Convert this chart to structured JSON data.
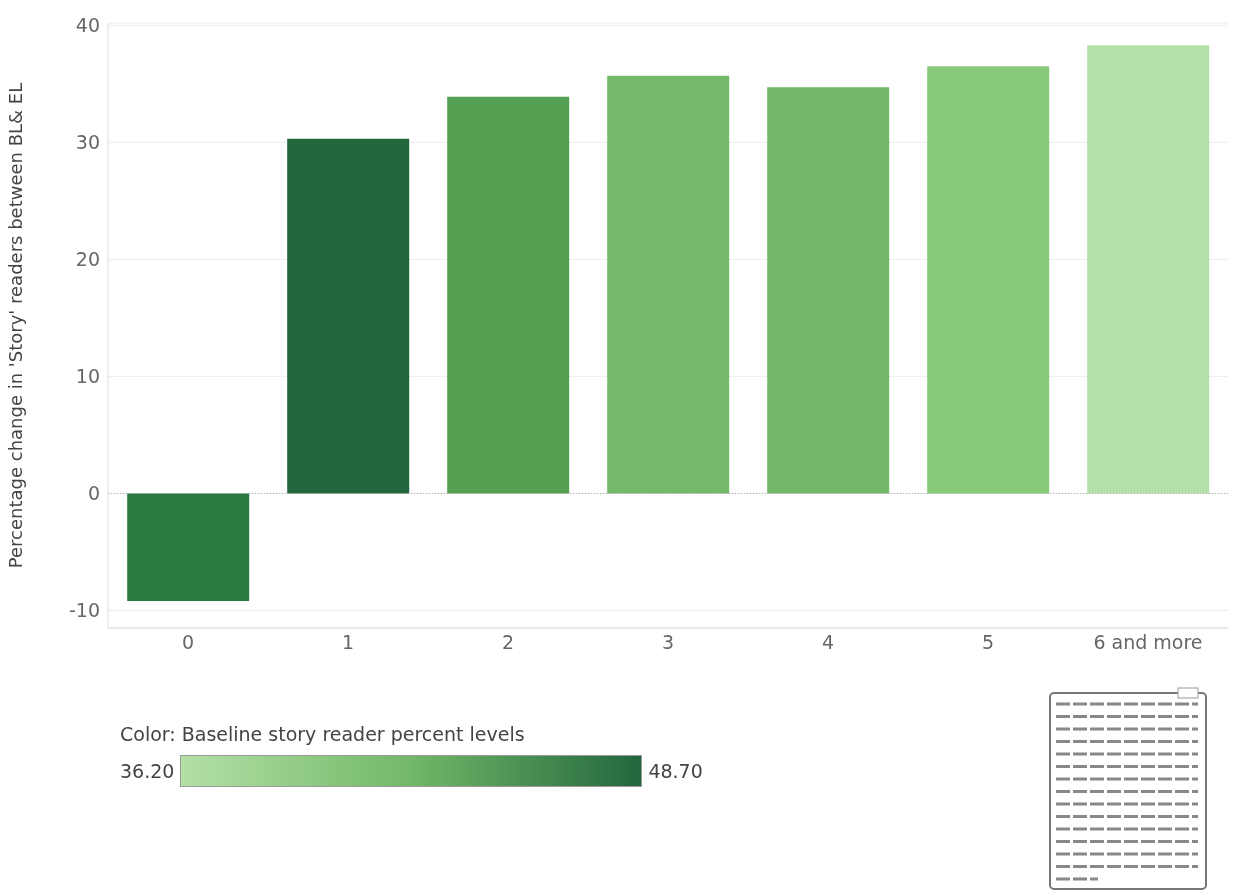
{
  "chart_data": {
    "type": "bar",
    "ylabel": "Percentage change in 'Story' readers between BL& EL",
    "categories": [
      "0",
      "1",
      "2",
      "3",
      "4",
      "5",
      "6 and more"
    ],
    "values": [
      -9.2,
      30.3,
      33.9,
      35.7,
      34.7,
      36.5,
      38.3
    ],
    "colors": [
      "#2b7a42",
      "#22673d",
      "#56a053",
      "#74b86a",
      "#72b868",
      "#88ca79",
      "#b3e0a6"
    ],
    "ylim": [
      -11.5,
      40.2
    ],
    "yticks": [
      -10,
      0,
      10,
      20,
      30,
      40
    ],
    "grid": "y",
    "ref_lines": [
      {
        "axis": "y",
        "value": 0,
        "line_style": "dotted",
        "color": "#aaaaaa"
      }
    ],
    "clabel": "Color: Baseline story reader percent levels",
    "clim": [
      36.2,
      48.7
    ],
    "cticks": [
      {
        "value": 36.2,
        "label": "36.20"
      },
      {
        "value": 48.7,
        "label": "48.70"
      }
    ]
  }
}
